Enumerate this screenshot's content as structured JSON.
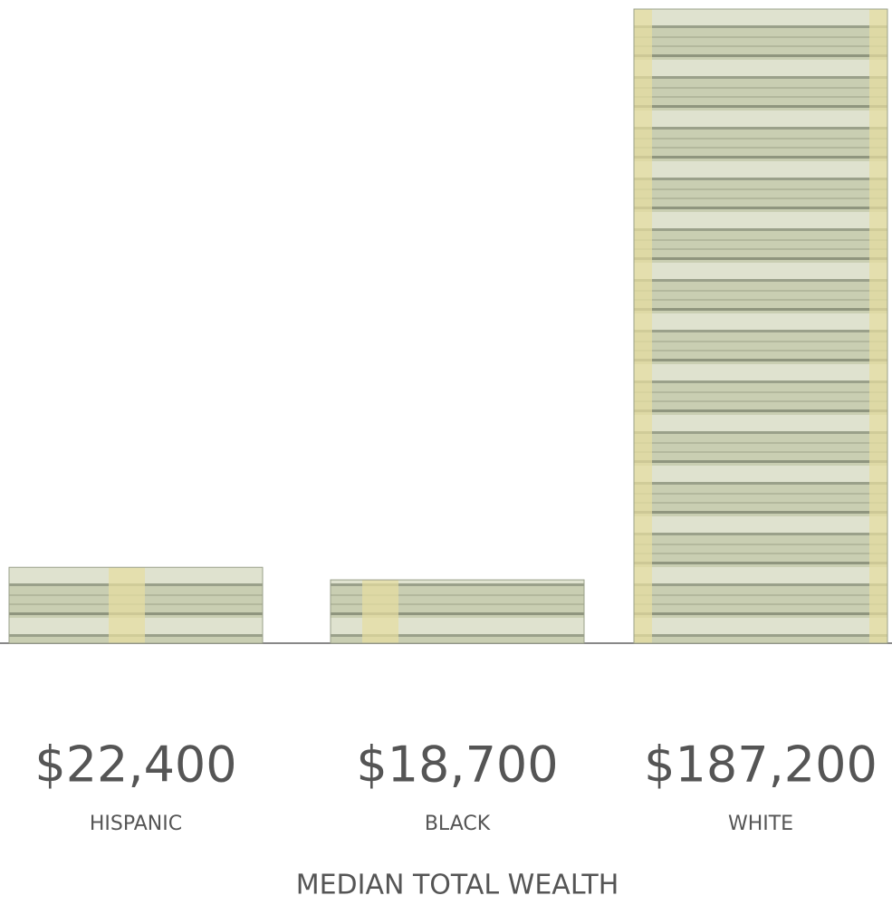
{
  "chart_data": {
    "type": "bar",
    "title": "MEDIAN TOTAL WEALTH",
    "categories": [
      "HISPANIC",
      "BLACK",
      "WHITE"
    ],
    "values": [
      22400,
      18700,
      187200
    ],
    "value_labels": [
      "$22,400",
      "$18,700",
      "$187,200"
    ],
    "color": "#c9ceb2"
  }
}
